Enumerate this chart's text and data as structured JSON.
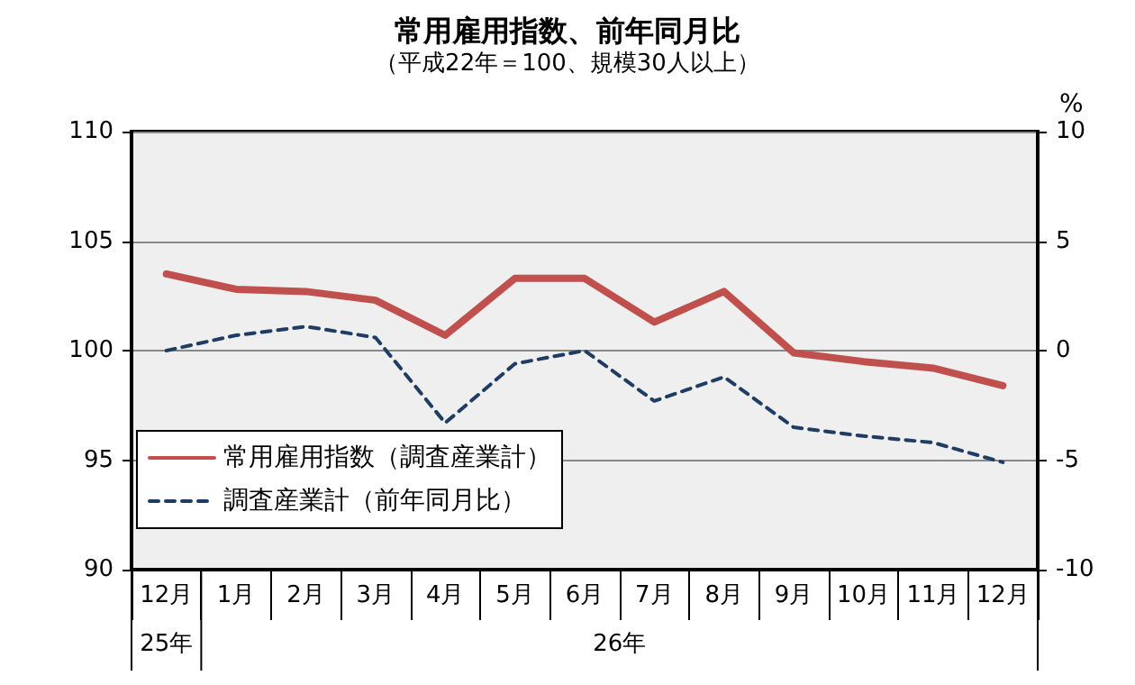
{
  "chart_data": {
    "type": "line",
    "title": "常用雇用指数、前年同月比",
    "subtitle": "（平成22年＝100、規模30人以上）",
    "y2label": "%",
    "categories": [
      "12月",
      "1月",
      "2月",
      "3月",
      "4月",
      "5月",
      "6月",
      "7月",
      "8月",
      "9月",
      "10月",
      "11月",
      "12月"
    ],
    "annotations": [
      "25年",
      "26年"
    ],
    "series": [
      {
        "name": "常用雇用指数（調査産業計）",
        "color": "#c0504d",
        "line_style": "solid",
        "values": [
          103.5,
          102.8,
          102.7,
          102.3,
          100.7,
          103.3,
          103.3,
          101.3,
          102.7,
          99.9,
          99.5,
          99.2,
          98.4
        ]
      },
      {
        "name": "調査産業計（前年同月比）",
        "color": "#1f3d63",
        "line_style": "dashed",
        "axis": "y2",
        "values": [
          0,
          0.7,
          1.1,
          0.6,
          -3.3,
          -0.6,
          0,
          -2.3,
          -1.2,
          -3.5,
          -3.9,
          -4.2,
          -5.1
        ]
      }
    ],
    "ylim": [
      90,
      110
    ],
    "yticks": [
      90,
      95,
      100,
      105,
      110
    ],
    "y2lim": [
      -10,
      10
    ],
    "y2ticks": [
      -10,
      -5,
      0,
      5,
      10
    ],
    "grid": "y",
    "legend": "bottom left",
    "marker": "none"
  }
}
